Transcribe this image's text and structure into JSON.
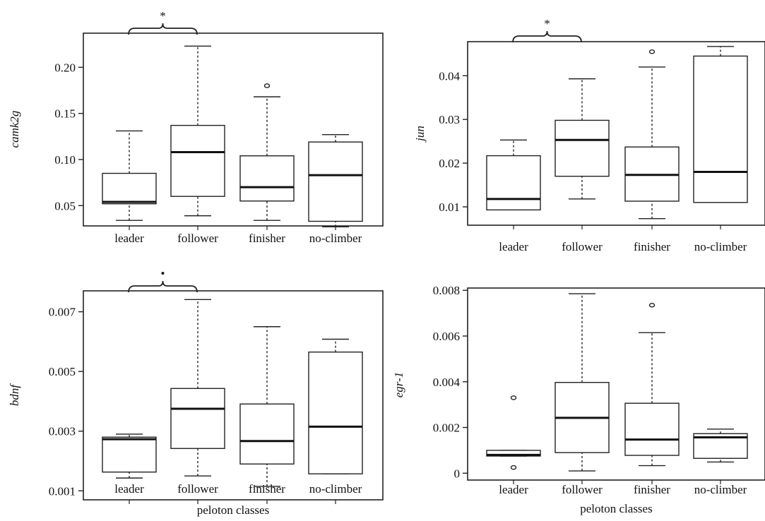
{
  "chart_data": [
    {
      "type": "box",
      "ylabel": "camk2g",
      "xlabel": "",
      "categories": [
        "leader",
        "follower",
        "finisher",
        "no-climber"
      ],
      "yticks": [
        "0.05",
        "0.10",
        "0.15",
        "0.20"
      ],
      "ylim": [
        0.028,
        0.237
      ],
      "boxes": [
        {
          "min": 0.034,
          "q1": 0.052,
          "median": 0.054,
          "q3": 0.085,
          "max": 0.131,
          "outliers": []
        },
        {
          "min": 0.039,
          "q1": 0.06,
          "median": 0.108,
          "q3": 0.137,
          "max": 0.223,
          "outliers": []
        },
        {
          "min": 0.034,
          "q1": 0.055,
          "median": 0.07,
          "q3": 0.104,
          "max": 0.168,
          "outliers": [
            0.18
          ]
        },
        {
          "min": 0.027,
          "q1": 0.033,
          "median": 0.083,
          "q3": 0.119,
          "max": 0.127,
          "outliers": []
        }
      ],
      "significance": {
        "between": [
          0,
          1
        ],
        "symbol": "*"
      }
    },
    {
      "type": "box",
      "ylabel": "jun",
      "xlabel": "",
      "categories": [
        "leader",
        "follower",
        "finisher",
        "no-climber"
      ],
      "yticks": [
        "0.01",
        "0.02",
        "0.03",
        "0.04"
      ],
      "ylim": [
        0.0058,
        0.0478
      ],
      "boxes": [
        {
          "min": 0.0093,
          "q1": 0.0093,
          "median": 0.0118,
          "q3": 0.0217,
          "max": 0.0253,
          "outliers": []
        },
        {
          "min": 0.0118,
          "q1": 0.017,
          "median": 0.0253,
          "q3": 0.0298,
          "max": 0.0393,
          "outliers": []
        },
        {
          "min": 0.0073,
          "q1": 0.0113,
          "median": 0.0173,
          "q3": 0.0237,
          "max": 0.042,
          "outliers": [
            0.0455
          ]
        },
        {
          "min": 0.011,
          "q1": 0.011,
          "median": 0.018,
          "q3": 0.0445,
          "max": 0.0467,
          "outliers": []
        }
      ],
      "significance": {
        "between": [
          0,
          1
        ],
        "symbol": "*"
      }
    },
    {
      "type": "box",
      "ylabel": "bdnf",
      "xlabel": "peloton classes",
      "categories": [
        "leader",
        "follower",
        "finisher",
        "no-climber"
      ],
      "yticks": [
        "0.001",
        "0.003",
        "0.005",
        "0.007"
      ],
      "ylim": [
        0.0007,
        0.0077
      ],
      "boxes": [
        {
          "min": 0.00143,
          "q1": 0.00163,
          "median": 0.00273,
          "q3": 0.0028,
          "max": 0.0029,
          "outliers": []
        },
        {
          "min": 0.0015,
          "q1": 0.00242,
          "median": 0.00375,
          "q3": 0.00443,
          "max": 0.00741,
          "outliers": []
        },
        {
          "min": 0.00115,
          "q1": 0.0019,
          "median": 0.00267,
          "q3": 0.00391,
          "max": 0.0065,
          "outliers": []
        },
        {
          "min": 0.00157,
          "q1": 0.00157,
          "median": 0.00315,
          "q3": 0.00565,
          "max": 0.00608,
          "outliers": []
        }
      ],
      "significance": {
        "between": [
          0,
          1
        ],
        "symbol": "•"
      }
    },
    {
      "type": "box",
      "ylabel": "egr-1",
      "xlabel": "peloton classes",
      "categories": [
        "leader",
        "follower",
        "finisher",
        "no-climber"
      ],
      "yticks": [
        "0",
        "0.002",
        "0.004",
        "0.006",
        "0.008"
      ],
      "ylim": [
        -0.0003,
        0.0081
      ],
      "boxes": [
        {
          "min": 0.00075,
          "q1": 0.00075,
          "median": 0.0008,
          "q3": 0.001,
          "max": 0.001,
          "outliers": [
            0.0033,
            0.00025
          ]
        },
        {
          "min": 0.0001,
          "q1": 0.0009,
          "median": 0.00242,
          "q3": 0.00397,
          "max": 0.00785,
          "outliers": []
        },
        {
          "min": 0.00033,
          "q1": 0.00078,
          "median": 0.00147,
          "q3": 0.00306,
          "max": 0.00615,
          "outliers": [
            0.00735
          ]
        },
        {
          "min": 0.00049,
          "q1": 0.00065,
          "median": 0.00157,
          "q3": 0.00173,
          "max": 0.00193,
          "outliers": []
        }
      ],
      "significance": null
    }
  ]
}
